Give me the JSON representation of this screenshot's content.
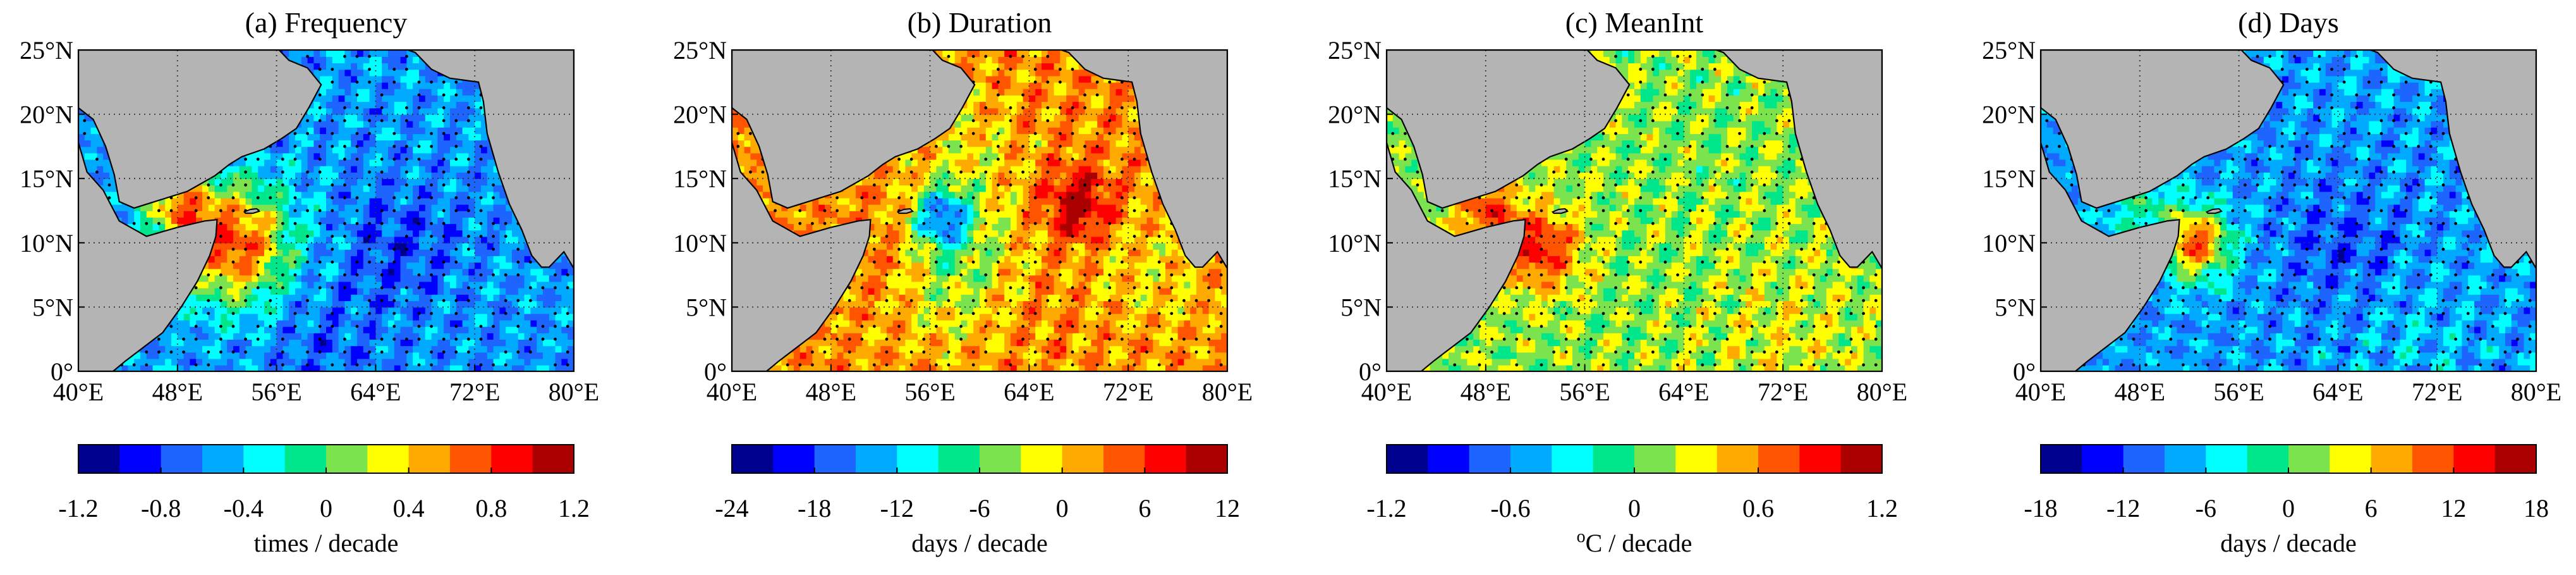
{
  "figure": {
    "colors": {
      "land": "#b4b4b4",
      "grid": "#333333",
      "scale": [
        "#00008f",
        "#0000ff",
        "#1e64ff",
        "#00aaff",
        "#00ffff",
        "#00e68a",
        "#7be34d",
        "#ffff00",
        "#ffaa00",
        "#ff5500",
        "#ff0000",
        "#aa0000"
      ]
    },
    "lat_ticks": [
      "0°",
      "5°N",
      "10°N",
      "15°N",
      "20°N",
      "25°N"
    ],
    "lon_ticks": [
      "40°E",
      "48°E",
      "56°E",
      "64°E",
      "72°E",
      "80°E"
    ]
  },
  "chart_data": [
    {
      "type": "heatmap",
      "title": "(a) Frequency",
      "unit_label": "times / decade",
      "colorbar_ticks": [
        "-1.2",
        "-0.8",
        "-0.4",
        "0",
        "0.4",
        "0.8",
        "1.2"
      ],
      "colorbar_range": [
        -1.2,
        1.2
      ],
      "lat_range": [
        0,
        25
      ],
      "lon_range": [
        40,
        80
      ],
      "grid": true,
      "field": {
        "base": -0.55,
        "features": [
          [
            66,
            10,
            1,
            -0.25
          ],
          [
            52.5,
            10,
            1,
            1.35
          ],
          [
            48,
            13,
            0.6,
            0.9
          ],
          [
            60,
            2,
            1,
            -0.15
          ]
        ]
      }
    },
    {
      "type": "heatmap",
      "title": "(b) Duration",
      "unit_label": "days / decade",
      "colorbar_ticks": [
        "-24",
        "-18",
        "-12",
        "-6",
        "0",
        "6",
        "12"
      ],
      "colorbar_range": [
        -24,
        12
      ],
      "lat_range": [
        0,
        25
      ],
      "lon_range": [
        40,
        80
      ],
      "grid": true,
      "field": {
        "base": 2.5,
        "features": [
          [
            57,
            12,
            0.5,
            -16
          ],
          [
            68,
            13,
            0.6,
            8.5
          ],
          [
            52,
            9,
            0.8,
            2
          ],
          [
            59,
            7.5,
            1.2,
            -8
          ],
          [
            62,
            6,
            1,
            3
          ],
          [
            59,
            17,
            1,
            -3.5
          ],
          [
            74,
            8,
            1.2,
            -3
          ]
        ]
      }
    },
    {
      "type": "heatmap",
      "title": "(c) MeanInt",
      "unit_label": "°C / decade",
      "unit_label_parts": [
        "o",
        "C / decade"
      ],
      "colorbar_ticks": [
        "-1.2",
        "-0.6",
        "0",
        "0.6",
        "1.2"
      ],
      "colorbar_range": [
        -1.2,
        1.2
      ],
      "lat_range": [
        0,
        25
      ],
      "lon_range": [
        40,
        80
      ],
      "grid": true,
      "field": {
        "base": 0.12,
        "features": [
          [
            52.5,
            9.5,
            0.7,
            0.75
          ],
          [
            48,
            12.5,
            0.6,
            0.6
          ],
          [
            72,
            2,
            1.5,
            0.15
          ]
        ]
      }
    },
    {
      "type": "heatmap",
      "title": "(d) Days",
      "unit_label": "days / decade",
      "colorbar_ticks": [
        "-18",
        "-12",
        "-6",
        "0",
        "6",
        "12",
        "18"
      ],
      "colorbar_range": [
        -18,
        18
      ],
      "lat_range": [
        0,
        25
      ],
      "lon_range": [
        40,
        80
      ],
      "grid": true,
      "field": {
        "base": -8,
        "features": [
          [
            64,
            10,
            1,
            -3.5
          ],
          [
            52.5,
            10,
            0.6,
            19
          ],
          [
            48,
            13,
            0.6,
            6
          ],
          [
            70,
            2,
            1,
            1.5
          ]
        ]
      }
    }
  ]
}
